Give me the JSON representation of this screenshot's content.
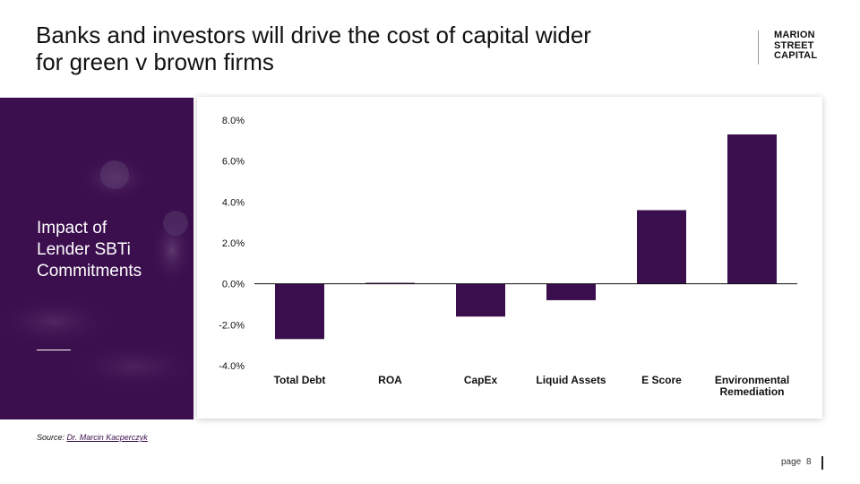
{
  "title_lines": [
    "Banks and investors will drive the cost of capital wider",
    "for green v brown firms"
  ],
  "logo_lines": [
    "MARION",
    "STREET",
    "CAPITAL"
  ],
  "side_panel": {
    "label_lines": [
      "Impact of",
      "Lender SBTi",
      "Commitments"
    ]
  },
  "colors": {
    "accent": "#3b0e4d",
    "bar": "#3b0e4d"
  },
  "chart_data": {
    "type": "bar",
    "title": "",
    "xlabel": "",
    "ylabel": "",
    "categories": [
      "Total Debt",
      "ROA",
      "CapEx",
      "Liquid Assets",
      "E Score",
      "Environmental Remediation"
    ],
    "category_labels": [
      [
        "Total Debt"
      ],
      [
        "ROA"
      ],
      [
        "CapEx"
      ],
      [
        "Liquid Assets"
      ],
      [
        "E Score"
      ],
      [
        "Environmental",
        "Remediation"
      ]
    ],
    "values": [
      -2.7,
      0.05,
      -1.6,
      -0.8,
      3.6,
      7.3
    ],
    "ylim": [
      -4.0,
      8.0
    ],
    "yticks": [
      8.0,
      6.0,
      4.0,
      2.0,
      0.0,
      -2.0,
      -4.0
    ],
    "ytick_labels": [
      "8.0%",
      "6.0%",
      "4.0%",
      "2.0%",
      "0.0%",
      "-2.0%",
      "-4.0%"
    ],
    "grid": false,
    "legend": "none"
  },
  "source": {
    "prefix": "Source:",
    "link_text": "Dr. Marcin  Kacperczyk"
  },
  "page": {
    "label": "page",
    "number": "8"
  }
}
